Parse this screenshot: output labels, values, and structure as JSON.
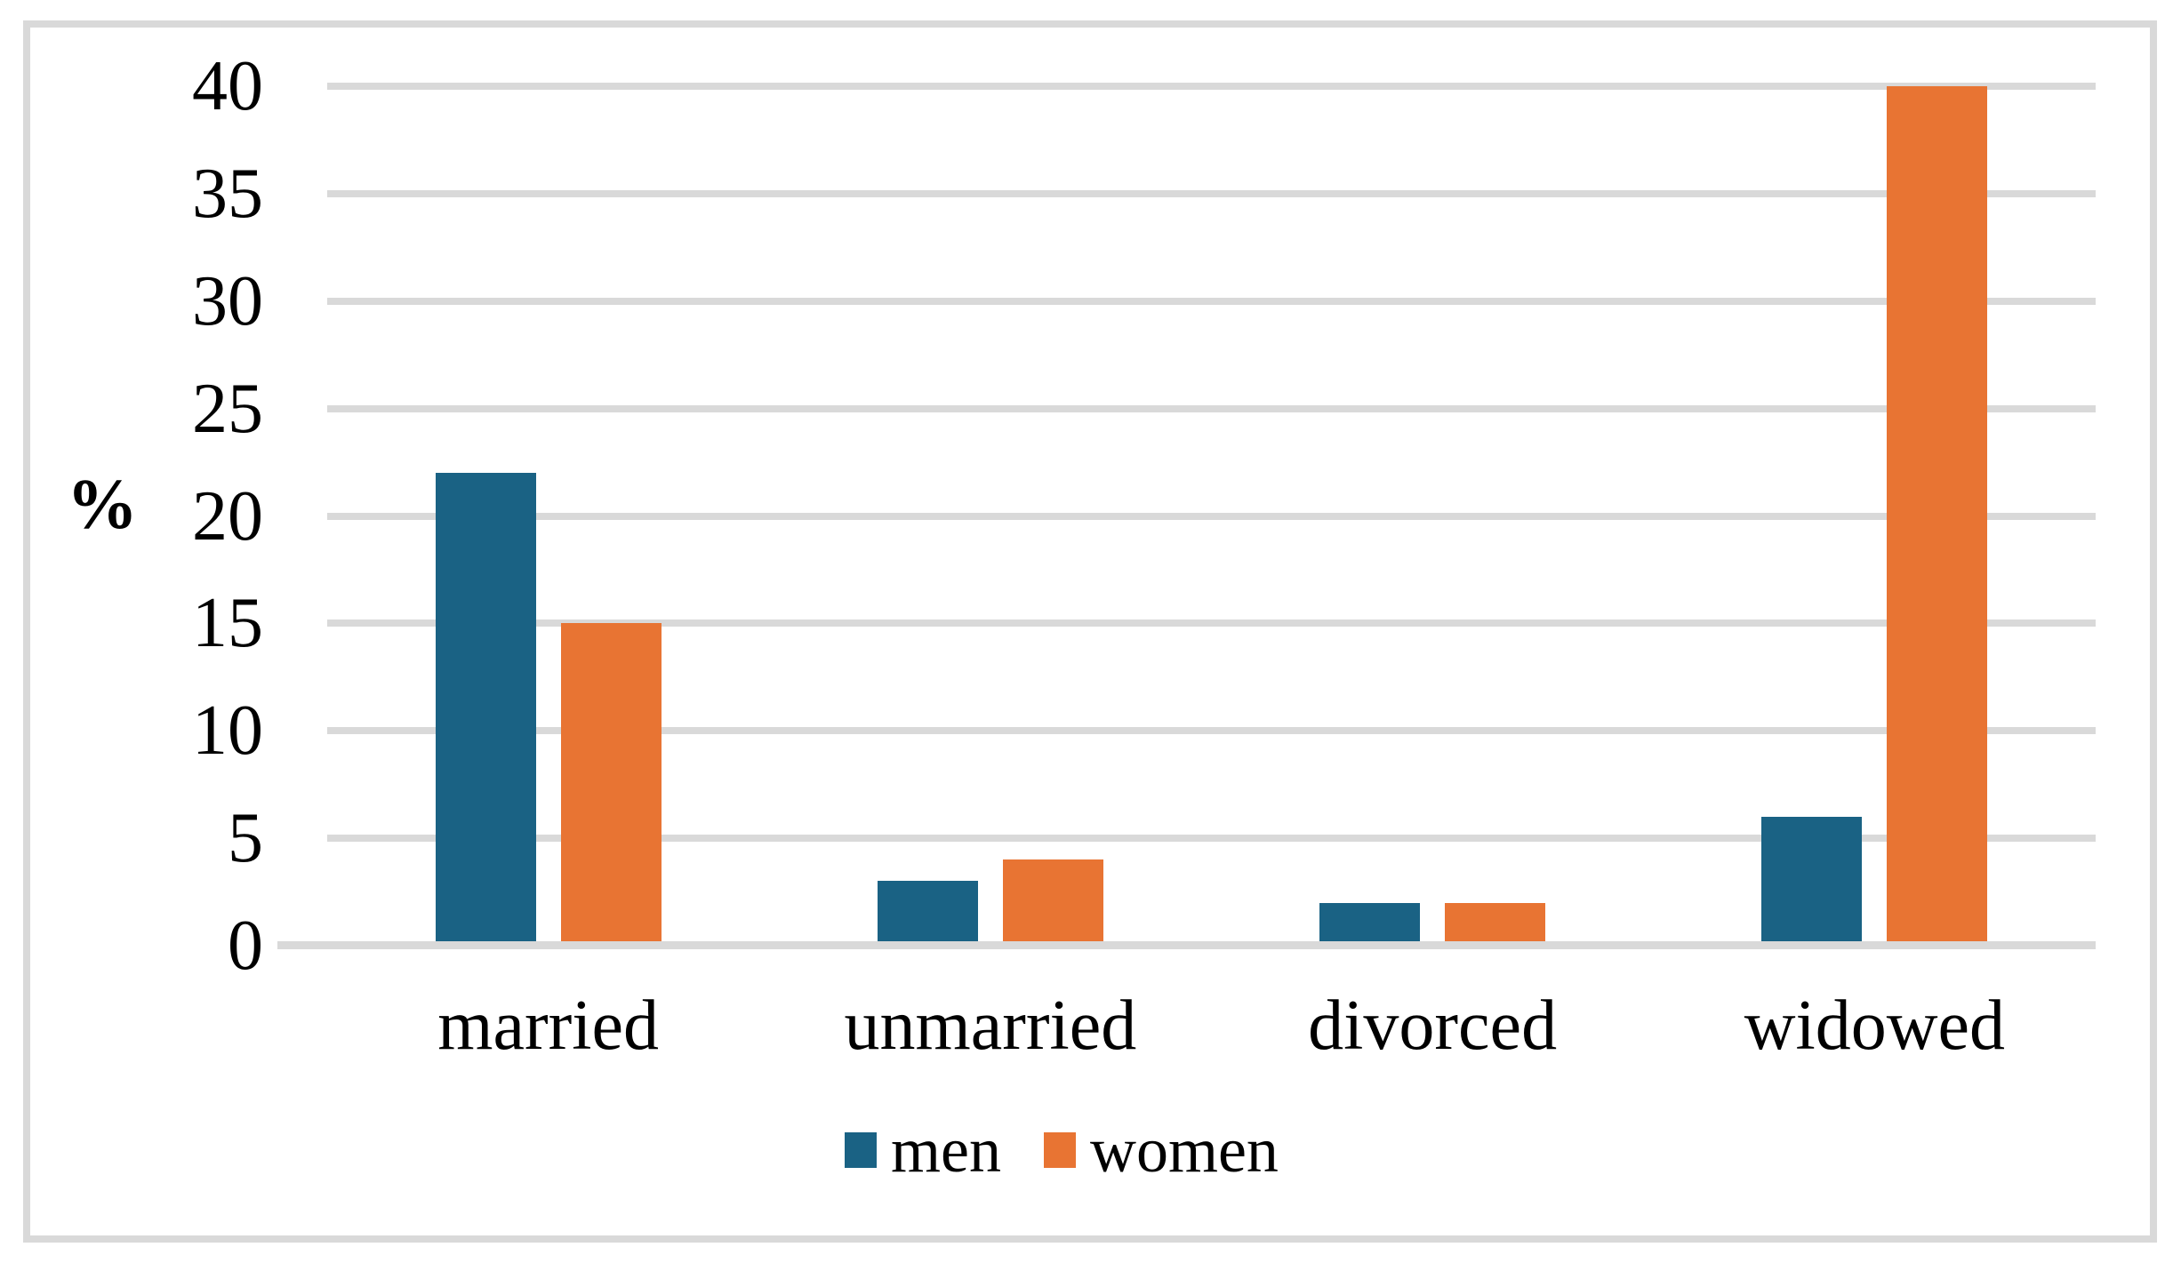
{
  "figure": {
    "background_color": "#ffffff",
    "frame_color": "#d9d9d9"
  },
  "chart_data": {
    "type": "bar",
    "title": "",
    "categories": [
      "married",
      "unmarried",
      "divorced",
      "widowed"
    ],
    "series": [
      {
        "name": "men",
        "color": "#1a6284",
        "values": [
          22,
          3,
          2,
          6
        ]
      },
      {
        "name": "women",
        "color": "#e87433",
        "values": [
          15,
          4,
          2,
          40
        ]
      }
    ],
    "xlabel": "",
    "ylabel": "%",
    "ylim": [
      0,
      40
    ],
    "ytick_step": 5,
    "ytick_labels": [
      "40",
      "35",
      "30",
      "25",
      "20",
      "15",
      "10",
      "5",
      "0"
    ],
    "grid": true,
    "gridline_color": "#d9d9d9",
    "legend_position": "bottom",
    "legend": [
      {
        "label": "men",
        "color": "#1a6284"
      },
      {
        "label": "women",
        "color": "#e87433"
      }
    ]
  }
}
